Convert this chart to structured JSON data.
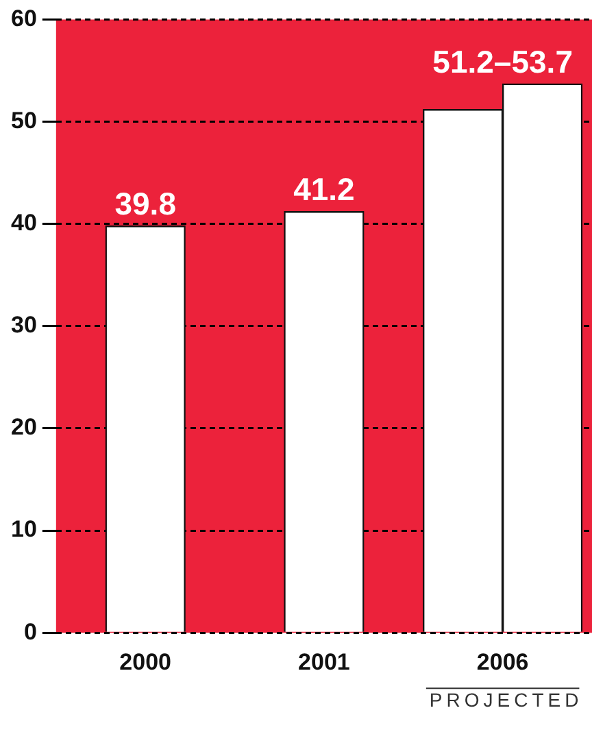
{
  "chart_data": {
    "type": "bar",
    "categories": [
      "2000",
      "2001",
      "2006"
    ],
    "series": [
      {
        "color": "#ffffff",
        "values": [
          39.8,
          41.2,
          51.2
        ],
        "value_labels": [
          "39.8",
          "41.2",
          "51.2–53.7"
        ]
      },
      {
        "color": "#ffffff",
        "values": [
          null,
          null,
          53.7
        ]
      }
    ],
    "ylim": [
      0,
      60
    ],
    "yticks": [
      0,
      10,
      20,
      30,
      40,
      50,
      60
    ],
    "grid": "y",
    "legend": false,
    "annotations": [
      "PROJECTED"
    ]
  }
}
